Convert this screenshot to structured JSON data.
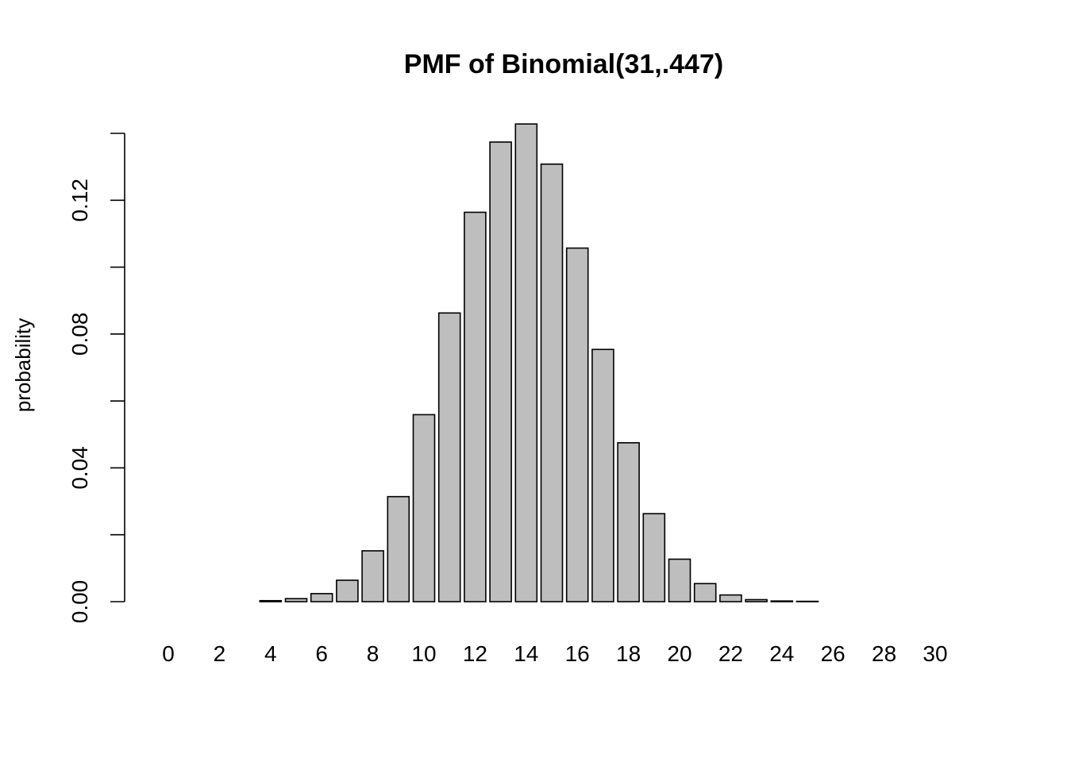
{
  "chart_data": {
    "type": "bar",
    "title": "PMF of Binomial(31,.447)",
    "xlabel": "",
    "ylabel": "probability",
    "categories": [
      "0",
      "1",
      "2",
      "3",
      "4",
      "5",
      "6",
      "7",
      "8",
      "9",
      "10",
      "11",
      "12",
      "13",
      "14",
      "15",
      "16",
      "17",
      "18",
      "19",
      "20",
      "21",
      "22",
      "23",
      "24",
      "25",
      "26",
      "27",
      "28",
      "29",
      "30",
      "31"
    ],
    "x_tick_labels": [
      "0",
      "2",
      "4",
      "6",
      "8",
      "10",
      "12",
      "14",
      "16",
      "18",
      "20",
      "22",
      "24",
      "26",
      "28",
      "30"
    ],
    "values": [
      0.0,
      0.0,
      0.0,
      0.0,
      0.0003,
      0.0009,
      0.0024,
      0.0064,
      0.0152,
      0.0314,
      0.0559,
      0.0863,
      0.1164,
      0.1374,
      0.1428,
      0.1308,
      0.1057,
      0.0754,
      0.0475,
      0.0263,
      0.0127,
      0.0054,
      0.002,
      0.0006,
      0.0002,
      0.0001,
      0.0,
      0.0,
      0.0,
      0.0,
      0.0,
      0.0
    ],
    "ylim": [
      0,
      0.14
    ],
    "y_ticks": [
      0,
      0.02,
      0.04,
      0.06,
      0.08,
      0.1,
      0.12,
      0.14
    ],
    "y_tick_labels": [
      "0.00",
      "0.04",
      "0.08",
      "0.12"
    ],
    "grid": false,
    "bar_color": "#bebebe"
  }
}
